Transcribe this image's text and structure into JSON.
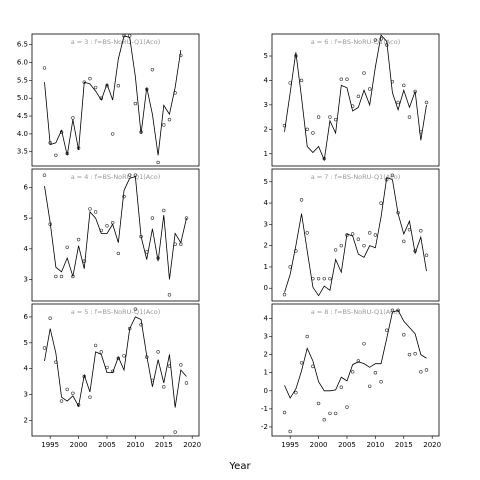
{
  "xlabel": "Year",
  "chart_data": [
    {
      "type": "scatter-line",
      "title": "a = 3 : f=BS-NoRU-Q1(Aco)",
      "x": [
        1994,
        1995,
        1996,
        1997,
        1998,
        1999,
        2000,
        2001,
        2002,
        2003,
        2004,
        2005,
        2006,
        2007,
        2008,
        2009,
        2010,
        2011,
        2012,
        2013,
        2014,
        2015,
        2016,
        2017,
        2018,
        2019
      ],
      "xlim": [
        1991.8,
        2021.2
      ],
      "ylim": [
        3.1,
        6.8
      ],
      "yticks": [
        {
          "value": 3.5,
          "label": "3.5"
        },
        {
          "value": 4,
          "label": "4.0"
        },
        4.5,
        {
          "value": 5,
          "label": "5.0"
        },
        5.5,
        {
          "value": 6,
          "label": "6.0"
        },
        6.5
      ],
      "series": [
        {
          "style": "points",
          "color": "#333333",
          "values": [
            5.85,
            3.75,
            3.4,
            4.05,
            3.45,
            4.45,
            3.6,
            5.45,
            5.55,
            5.3,
            5.0,
            5.35,
            4.0,
            5.35,
            6.75,
            6.75,
            4.85,
            4.05,
            5.25,
            5.8,
            3.2,
            4.25,
            4.4,
            5.15,
            6.2,
            null
          ]
        },
        {
          "style": "line",
          "color": "#000000",
          "values": [
            5.45,
            3.7,
            3.75,
            4.1,
            3.4,
            4.4,
            3.55,
            5.45,
            5.4,
            5.2,
            4.95,
            5.4,
            4.95,
            6.1,
            6.75,
            6.7,
            5.6,
            4.0,
            5.3,
            4.55,
            3.4,
            4.8,
            4.55,
            5.3,
            6.35,
            null
          ]
        }
      ]
    },
    {
      "type": "scatter-line",
      "title": "a = 4 : f=BS-NoRU-Q1(Aco)",
      "x": [
        1994,
        1995,
        1996,
        1997,
        1998,
        1999,
        2000,
        2001,
        2002,
        2003,
        2004,
        2005,
        2006,
        2007,
        2008,
        2009,
        2010,
        2011,
        2012,
        2013,
        2014,
        2015,
        2016,
        2017,
        2018,
        2019
      ],
      "xlim": [
        1991.8,
        2021.2
      ],
      "ylim": [
        2.3,
        6.6
      ],
      "yticks": [
        3,
        4,
        5,
        6
      ],
      "series": [
        {
          "style": "points",
          "color": "#333333",
          "values": [
            6.4,
            4.8,
            3.1,
            3.1,
            4.05,
            3.1,
            4.3,
            3.6,
            5.3,
            5.2,
            4.6,
            4.75,
            4.85,
            3.85,
            5.7,
            6.4,
            6.4,
            4.4,
            3.9,
            5.0,
            3.7,
            5.25,
            2.5,
            4.15,
            4.15,
            5.0
          ]
        },
        {
          "style": "line",
          "color": "#000000",
          "values": [
            6.05,
            4.85,
            3.4,
            3.25,
            3.7,
            3.1,
            4.1,
            3.35,
            5.2,
            5.0,
            4.5,
            4.5,
            4.8,
            4.2,
            5.9,
            6.3,
            6.35,
            4.4,
            3.65,
            4.65,
            3.6,
            5.1,
            3.0,
            4.5,
            4.2,
            5.0
          ]
        }
      ]
    },
    {
      "type": "scatter-line",
      "title": "a = 5 : f=BS-NoRU-Q1(Aco)",
      "x": [
        1994,
        1995,
        1996,
        1997,
        1998,
        1999,
        2000,
        2001,
        2002,
        2003,
        2004,
        2005,
        2006,
        2007,
        2008,
        2009,
        2010,
        2011,
        2012,
        2013,
        2014,
        2015,
        2016,
        2017,
        2018,
        2019
      ],
      "xlim": [
        1991.8,
        2021.2
      ],
      "ylim": [
        1.4,
        6.5
      ],
      "xticks": [
        1995,
        2000,
        2005,
        2010,
        2015,
        2020
      ],
      "yticks": [
        2,
        3,
        4,
        5,
        6
      ],
      "series": [
        {
          "style": "points",
          "color": "#333333",
          "values": [
            4.8,
            5.95,
            4.25,
            2.75,
            3.2,
            3.05,
            2.6,
            3.7,
            2.9,
            4.9,
            4.65,
            4.05,
            3.9,
            4.4,
            4.5,
            5.55,
            6.3,
            5.7,
            4.45,
            3.55,
            4.65,
            3.3,
            4.1,
            1.55,
            4.15,
            3.45
          ]
        },
        {
          "style": "line",
          "color": "#000000",
          "values": [
            4.3,
            5.55,
            4.6,
            2.9,
            2.75,
            2.95,
            2.55,
            3.75,
            3.1,
            4.65,
            4.55,
            3.85,
            3.85,
            4.45,
            3.95,
            5.55,
            6.0,
            5.9,
            4.5,
            3.3,
            4.35,
            3.45,
            4.55,
            2.5,
            3.95,
            3.7
          ]
        }
      ]
    },
    {
      "type": "scatter-line",
      "title": "a = 6 : f=BS-NoRU-Q1(Aco)",
      "x": [
        1994,
        1995,
        1996,
        1997,
        1998,
        1999,
        2000,
        2001,
        2002,
        2003,
        2004,
        2005,
        2006,
        2007,
        2008,
        2009,
        2010,
        2011,
        2012,
        2013,
        2014,
        2015,
        2016,
        2017,
        2018,
        2019
      ],
      "xlim": [
        1991.8,
        2021.2
      ],
      "ylim": [
        0.5,
        5.9
      ],
      "yticks": [
        1,
        2,
        3,
        4,
        5
      ],
      "series": [
        {
          "style": "points",
          "color": "#333333",
          "values": [
            2.15,
            3.9,
            5.0,
            4.0,
            2.0,
            1.85,
            2.5,
            0.8,
            2.5,
            2.4,
            4.05,
            4.05,
            2.95,
            3.35,
            4.3,
            3.65,
            5.65,
            5.7,
            5.45,
            3.95,
            3.1,
            3.8,
            2.5,
            3.55,
            1.9,
            3.1
          ]
        },
        {
          "style": "line",
          "color": "#000000",
          "values": [
            1.9,
            3.5,
            5.15,
            3.3,
            1.3,
            1.05,
            1.3,
            0.75,
            2.35,
            1.85,
            3.8,
            3.7,
            2.75,
            2.9,
            3.6,
            3.0,
            4.55,
            5.85,
            5.6,
            3.5,
            2.8,
            3.6,
            2.9,
            3.55,
            1.55,
            3.0
          ]
        }
      ]
    },
    {
      "type": "scatter-line",
      "title": "a = 7 : f=BS-NoRU-Q1(Aco)",
      "x": [
        1994,
        1995,
        1996,
        1997,
        1998,
        1999,
        2000,
        2001,
        2002,
        2003,
        2004,
        2005,
        2006,
        2007,
        2008,
        2009,
        2010,
        2011,
        2012,
        2013,
        2014,
        2015,
        2016,
        2017,
        2018,
        2019
      ],
      "xlim": [
        1991.8,
        2021.2
      ],
      "ylim": [
        -0.6,
        5.6
      ],
      "yticks": [
        0,
        1,
        2,
        3,
        4,
        5
      ],
      "series": [
        {
          "style": "points",
          "color": "#333333",
          "values": [
            -0.3,
            1.0,
            1.75,
            4.15,
            2.6,
            0.45,
            0.45,
            0.45,
            0.45,
            1.8,
            2.0,
            2.5,
            2.55,
            2.3,
            2.0,
            2.6,
            2.5,
            4.0,
            5.1,
            5.3,
            3.55,
            2.2,
            2.75,
            1.75,
            2.7,
            1.55
          ]
        },
        {
          "style": "line",
          "color": "#000000",
          "values": [
            -0.2,
            0.65,
            2.0,
            3.5,
            1.75,
            0.05,
            -0.35,
            0.1,
            -0.1,
            1.35,
            0.75,
            2.55,
            2.45,
            1.6,
            1.45,
            2.0,
            1.9,
            3.35,
            5.2,
            5.1,
            3.5,
            2.55,
            3.15,
            1.65,
            2.4,
            0.8
          ]
        }
      ]
    },
    {
      "type": "scatter-line",
      "title": "a = 8 : f=BS-NoRU-Q1(Aco)",
      "x": [
        1994,
        1995,
        1996,
        1997,
        1998,
        1999,
        2000,
        2001,
        2002,
        2003,
        2004,
        2005,
        2006,
        2007,
        2008,
        2009,
        2010,
        2011,
        2012,
        2013,
        2014,
        2015,
        2016,
        2017,
        2018,
        2019
      ],
      "xlim": [
        1991.8,
        2021.2
      ],
      "ylim": [
        -2.5,
        4.8
      ],
      "xticks": [
        1995,
        2000,
        2005,
        2010,
        2015,
        2020
      ],
      "yticks": [
        -2,
        -1,
        0,
        1,
        2,
        3,
        4
      ],
      "series": [
        {
          "style": "points",
          "color": "#333333",
          "values": [
            -1.2,
            -2.25,
            -0.1,
            1.55,
            3.0,
            1.35,
            -0.7,
            -1.6,
            -1.25,
            -1.25,
            0.2,
            -0.9,
            1.05,
            1.65,
            2.6,
            0.25,
            1.0,
            0.5,
            3.35,
            4.45,
            4.45,
            3.1,
            2.0,
            2.05,
            1.05,
            1.15
          ]
        },
        {
          "style": "line",
          "color": "#000000",
          "values": [
            0.3,
            -0.4,
            0.1,
            1.1,
            2.35,
            1.65,
            0.5,
            0.0,
            0.0,
            0.05,
            0.75,
            0.55,
            1.45,
            1.6,
            1.5,
            1.3,
            1.5,
            1.5,
            2.9,
            4.35,
            4.45,
            3.85,
            3.5,
            3.15,
            2.0,
            1.8
          ]
        }
      ]
    }
  ]
}
